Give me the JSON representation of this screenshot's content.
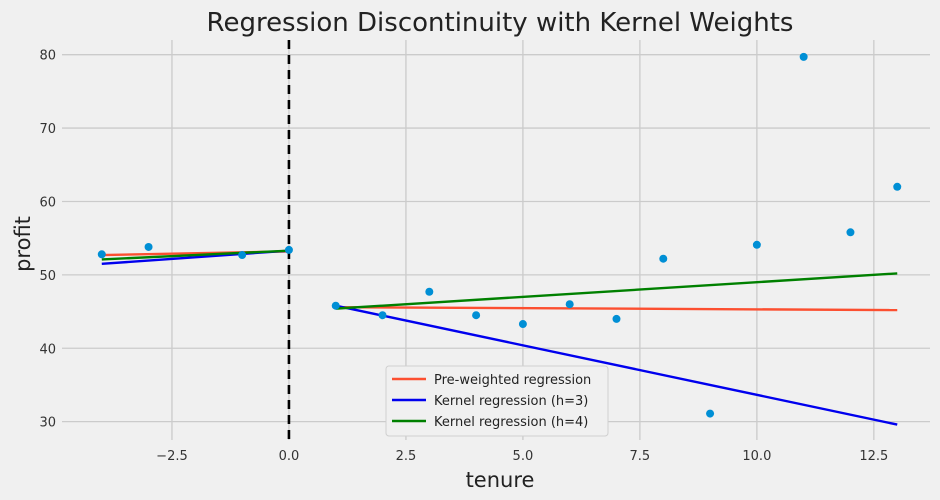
{
  "chart_data": {
    "type": "scatter",
    "title": "Regression Discontinuity with Kernel Weights",
    "xlabel": "tenure",
    "ylabel": "profit",
    "xlim": [
      -4.85,
      13.7
    ],
    "ylim": [
      27.5,
      82
    ],
    "xticks": [
      -2.5,
      0.0,
      2.5,
      5.0,
      7.5,
      10.0,
      12.5
    ],
    "xtick_labels": [
      "−2.5",
      "0.0",
      "2.5",
      "5.0",
      "7.5",
      "10.0",
      "12.5"
    ],
    "yticks": [
      30,
      40,
      50,
      60,
      70,
      80
    ],
    "ytick_labels": [
      "30",
      "40",
      "50",
      "60",
      "70",
      "80"
    ],
    "grid": true,
    "cutoff": 0.0,
    "points": {
      "color": "#008fd5",
      "x": [
        -4,
        -3,
        -1,
        0,
        1,
        2,
        3,
        4,
        5,
        6,
        7,
        8,
        9,
        10,
        11,
        12,
        13
      ],
      "y": [
        52.8,
        53.8,
        52.7,
        53.4,
        45.8,
        44.5,
        47.7,
        44.5,
        43.3,
        46.0,
        44.0,
        52.2,
        31.1,
        54.1,
        79.7,
        55.8,
        62.0
      ]
    },
    "series": [
      {
        "name": "Pre-weighted regression",
        "color": "#fc4f30",
        "segments": [
          {
            "x": [
              -4,
              0
            ],
            "y": [
              52.7,
              53.2
            ]
          },
          {
            "x": [
              1,
              13
            ],
            "y": [
              45.6,
              45.2
            ]
          }
        ]
      },
      {
        "name": "Kernel regression (h=3)",
        "color": "#0000ee",
        "segments": [
          {
            "x": [
              -4,
              0
            ],
            "y": [
              51.5,
              53.3
            ]
          },
          {
            "x": [
              1,
              13
            ],
            "y": [
              45.8,
              29.6
            ]
          }
        ]
      },
      {
        "name": "Kernel regression (h=4)",
        "color": "#008000",
        "segments": [
          {
            "x": [
              -4,
              0
            ],
            "y": [
              52.1,
              53.3
            ]
          },
          {
            "x": [
              1,
              13
            ],
            "y": [
              45.4,
              50.2
            ]
          }
        ]
      }
    ],
    "legend_position": "lower-center"
  }
}
